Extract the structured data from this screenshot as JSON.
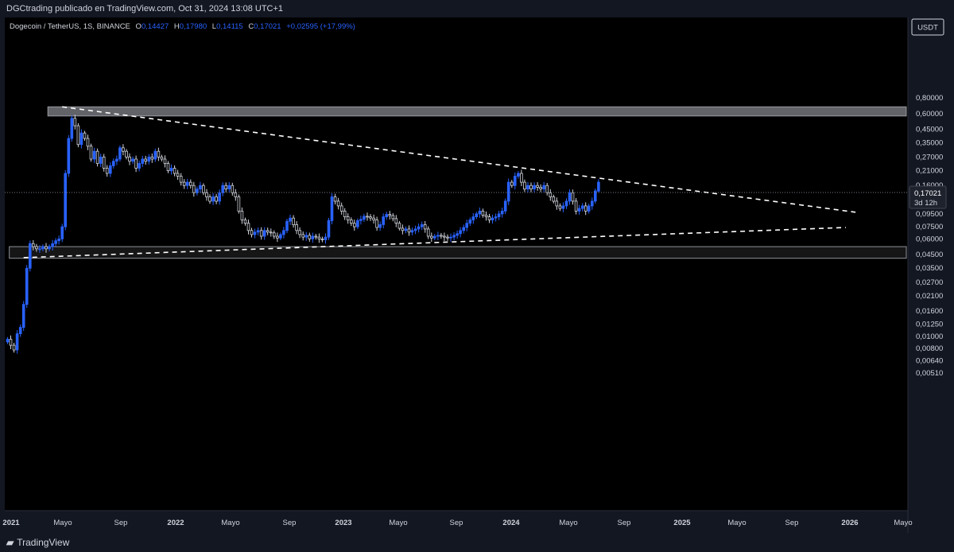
{
  "header": {
    "publisher": "DGCtrading publicado en TradingView.com, Oct 31, 2024 13:08 UTC+1"
  },
  "legend": {
    "symbol": "Dogecoin / TetherUS, 1S, BINANCE",
    "o_label": "O",
    "o": "0,14427",
    "h_label": "H",
    "h": "0,17980",
    "l_label": "L",
    "l": "0,14115",
    "c_label": "C",
    "c": "0,17021",
    "change": "+0,02595 (+17,99%)"
  },
  "currency_button": "USDT",
  "last_price": {
    "value": "0,17021",
    "countdown": "3d 12h"
  },
  "footer": {
    "brand": "TradingView"
  },
  "colors": {
    "background": "#000000",
    "up": "#2962ff",
    "down": "#d1d4dc",
    "trendline": "#ffffff",
    "zone": "#b2b5be",
    "axis_text": "#d1d4dc"
  },
  "chart_data": {
    "type": "candlestick",
    "y_scale": "log",
    "ylim": [
      0.0045,
      0.9
    ],
    "y_ticks": [
      "0,80000",
      "0,60000",
      "0,45000",
      "0,35000",
      "0,27000",
      "0,21000",
      "0,16000",
      "0,12000",
      "0,09500",
      "0,07500",
      "0,06000",
      "0,04500",
      "0,03500",
      "0,02700",
      "0,02100",
      "0,01600",
      "0,01250",
      "0,01000",
      "0,00800",
      "0,00640",
      "0,00510"
    ],
    "x_ticks": [
      "2021",
      "Mayo",
      "Sep",
      "2022",
      "Mayo",
      "Sep",
      "2023",
      "Mayo",
      "Sep",
      "2024",
      "Mayo",
      "Sep",
      "2025",
      "Mayo",
      "Sep",
      "2026",
      "Mayo"
    ],
    "weekly_closes": [
      0.0095,
      0.0085,
      0.0078,
      0.0105,
      0.0118,
      0.018,
      0.035,
      0.055,
      0.052,
      0.05,
      0.05,
      0.052,
      0.05,
      0.052,
      0.055,
      0.058,
      0.06,
      0.075,
      0.2,
      0.38,
      0.55,
      0.48,
      0.34,
      0.42,
      0.38,
      0.33,
      0.26,
      0.3,
      0.24,
      0.27,
      0.22,
      0.2,
      0.23,
      0.25,
      0.26,
      0.32,
      0.3,
      0.27,
      0.25,
      0.26,
      0.22,
      0.24,
      0.26,
      0.25,
      0.27,
      0.26,
      0.3,
      0.27,
      0.26,
      0.24,
      0.21,
      0.22,
      0.2,
      0.19,
      0.17,
      0.16,
      0.17,
      0.16,
      0.14,
      0.15,
      0.16,
      0.14,
      0.13,
      0.12,
      0.13,
      0.12,
      0.14,
      0.16,
      0.15,
      0.16,
      0.14,
      0.13,
      0.1,
      0.085,
      0.08,
      0.07,
      0.065,
      0.068,
      0.07,
      0.063,
      0.07,
      0.068,
      0.067,
      0.063,
      0.061,
      0.065,
      0.07,
      0.083,
      0.088,
      0.078,
      0.07,
      0.065,
      0.062,
      0.064,
      0.06,
      0.063,
      0.062,
      0.06,
      0.059,
      0.062,
      0.084,
      0.13,
      0.12,
      0.11,
      0.1,
      0.09,
      0.085,
      0.08,
      0.075,
      0.084,
      0.086,
      0.091,
      0.09,
      0.088,
      0.085,
      0.074,
      0.078,
      0.09,
      0.094,
      0.092,
      0.087,
      0.08,
      0.073,
      0.07,
      0.072,
      0.068,
      0.07,
      0.072,
      0.075,
      0.078,
      0.072,
      0.063,
      0.061,
      0.063,
      0.064,
      0.063,
      0.062,
      0.061,
      0.062,
      0.064,
      0.066,
      0.07,
      0.074,
      0.08,
      0.085,
      0.09,
      0.095,
      0.1,
      0.093,
      0.09,
      0.085,
      0.088,
      0.09,
      0.095,
      0.1,
      0.12,
      0.17,
      0.16,
      0.19,
      0.2,
      0.17,
      0.15,
      0.16,
      0.15,
      0.16,
      0.155,
      0.15,
      0.16,
      0.14,
      0.13,
      0.12,
      0.11,
      0.105,
      0.11,
      0.12,
      0.14,
      0.12,
      0.1,
      0.105,
      0.11,
      0.1,
      0.11,
      0.12,
      0.145,
      0.17021
    ],
    "last_candle": {
      "open": 0.14427,
      "high": 0.1798,
      "low": 0.14115,
      "close": 0.17021
    },
    "zones": [
      {
        "name": "resistance-zone",
        "price_top": 0.68,
        "price_bottom": 0.575,
        "start_week": 17
      },
      {
        "name": "support-zone",
        "price_top": 0.052,
        "price_bottom": 0.042,
        "start_week": 5
      }
    ],
    "trendlines": [
      {
        "name": "descending-trendline",
        "from_week": 17,
        "from_price": 0.68,
        "to_week": 264,
        "to_price": 0.098
      },
      {
        "name": "ascending-trendline",
        "from_week": 5,
        "from_price": 0.0425,
        "to_week": 261,
        "to_price": 0.074
      }
    ]
  }
}
